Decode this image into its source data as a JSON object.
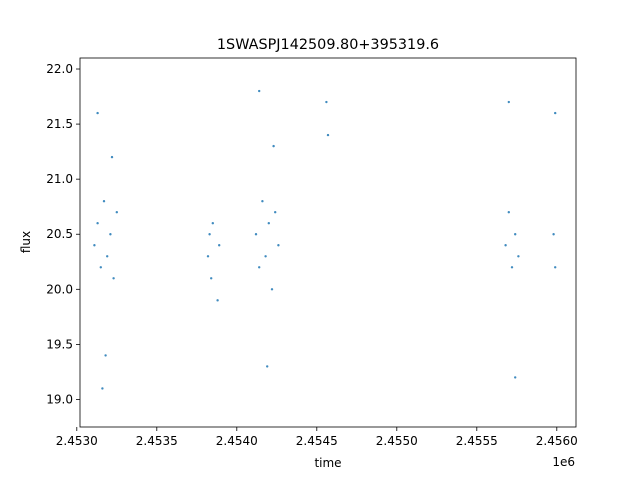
{
  "chart_data": {
    "type": "scatter",
    "title": "1SWASPJ142509.80+395319.6",
    "xlabel": "time",
    "ylabel": "flux",
    "x_offset_label": "1e6",
    "xlim": [
      2.45302,
      2.45612
    ],
    "ylim": [
      18.75,
      22.1
    ],
    "x_ticks": [
      2.453,
      2.4535,
      2.454,
      2.4545,
      2.455,
      2.4555,
      2.456
    ],
    "x_tick_labels": [
      "2.4530",
      "2.4535",
      "2.4540",
      "2.4545",
      "2.4550",
      "2.4555",
      "2.4560"
    ],
    "y_ticks": [
      19.0,
      19.5,
      20.0,
      20.5,
      21.0,
      21.5,
      22.0
    ],
    "y_tick_labels": [
      "19.0",
      "19.5",
      "20.0",
      "20.5",
      "21.0",
      "21.5",
      "22.0"
    ],
    "grid": false,
    "marker_color": "#1f77b4",
    "series": [
      {
        "x": [
          2.45311,
          2.45313,
          2.45315,
          2.45317,
          2.45319,
          2.45321,
          2.45323,
          2.45325,
          2.45313,
          2.45318,
          2.45322,
          2.45316,
          2.45382,
          2.45383,
          2.45384,
          2.45385,
          2.45388,
          2.45389,
          2.45412,
          2.45414,
          2.45416,
          2.45418,
          2.4542,
          2.45422,
          2.45424,
          2.45426,
          2.45414,
          2.45419,
          2.45423,
          2.45456,
          2.45457,
          2.45568,
          2.4557,
          2.45572,
          2.45574,
          2.45576,
          2.4557,
          2.45574,
          2.45598,
          2.45599,
          2.45599
        ],
        "y": [
          20.4,
          20.6,
          20.2,
          20.8,
          20.3,
          20.5,
          20.1,
          20.7,
          21.6,
          19.4,
          21.2,
          19.1,
          20.3,
          20.5,
          20.1,
          20.6,
          19.9,
          20.4,
          20.5,
          20.2,
          20.8,
          20.3,
          20.6,
          20.0,
          20.7,
          20.4,
          21.8,
          19.3,
          21.3,
          21.7,
          21.4,
          20.4,
          20.7,
          20.2,
          20.5,
          20.3,
          21.7,
          19.2,
          20.5,
          20.2,
          21.6
        ]
      }
    ]
  }
}
